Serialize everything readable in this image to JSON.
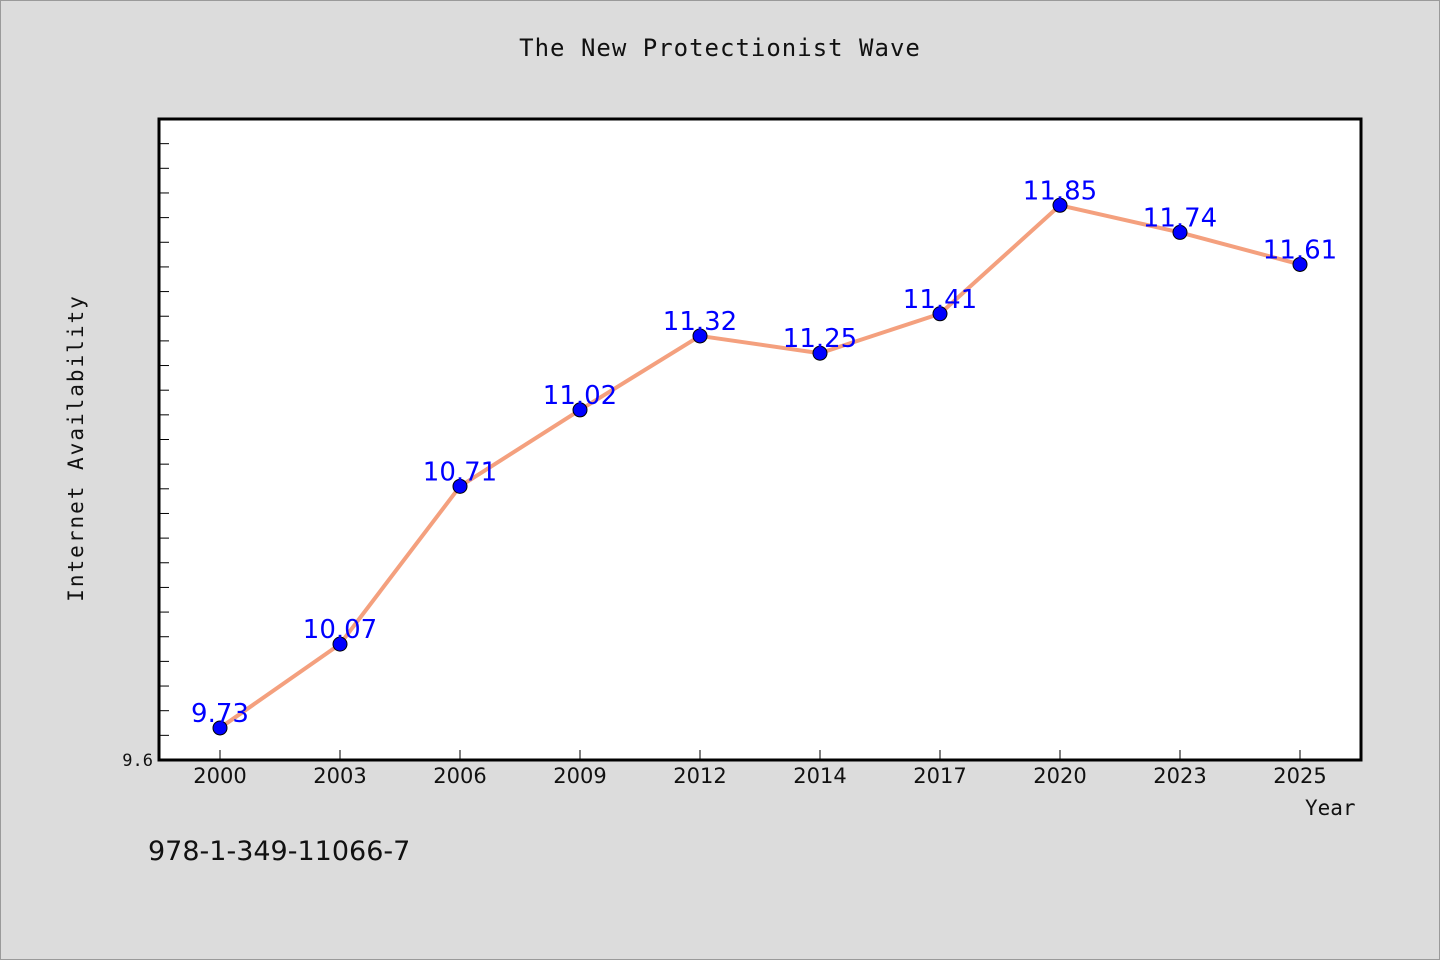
{
  "chart_data": {
    "type": "line",
    "title": "The New Protectionist Wave",
    "xlabel": "Year",
    "ylabel": "Internet Availability",
    "categories": [
      "2000",
      "2003",
      "2006",
      "2009",
      "2012",
      "2014",
      "2017",
      "2020",
      "2023",
      "2025"
    ],
    "series": [
      {
        "values": [
          9.73,
          10.07,
          10.71,
          11.02,
          11.32,
          11.25,
          11.41,
          11.85,
          11.74,
          11.61
        ]
      }
    ],
    "ylim": [
      9.6,
      12.2
    ],
    "ytick_label": "9.6",
    "grid": false,
    "line_color": "#f4a07e",
    "marker_color": "#0000ff",
    "label_color": "#0000ff"
  },
  "footer": {
    "isbn": "978-1-349-11066-7"
  }
}
